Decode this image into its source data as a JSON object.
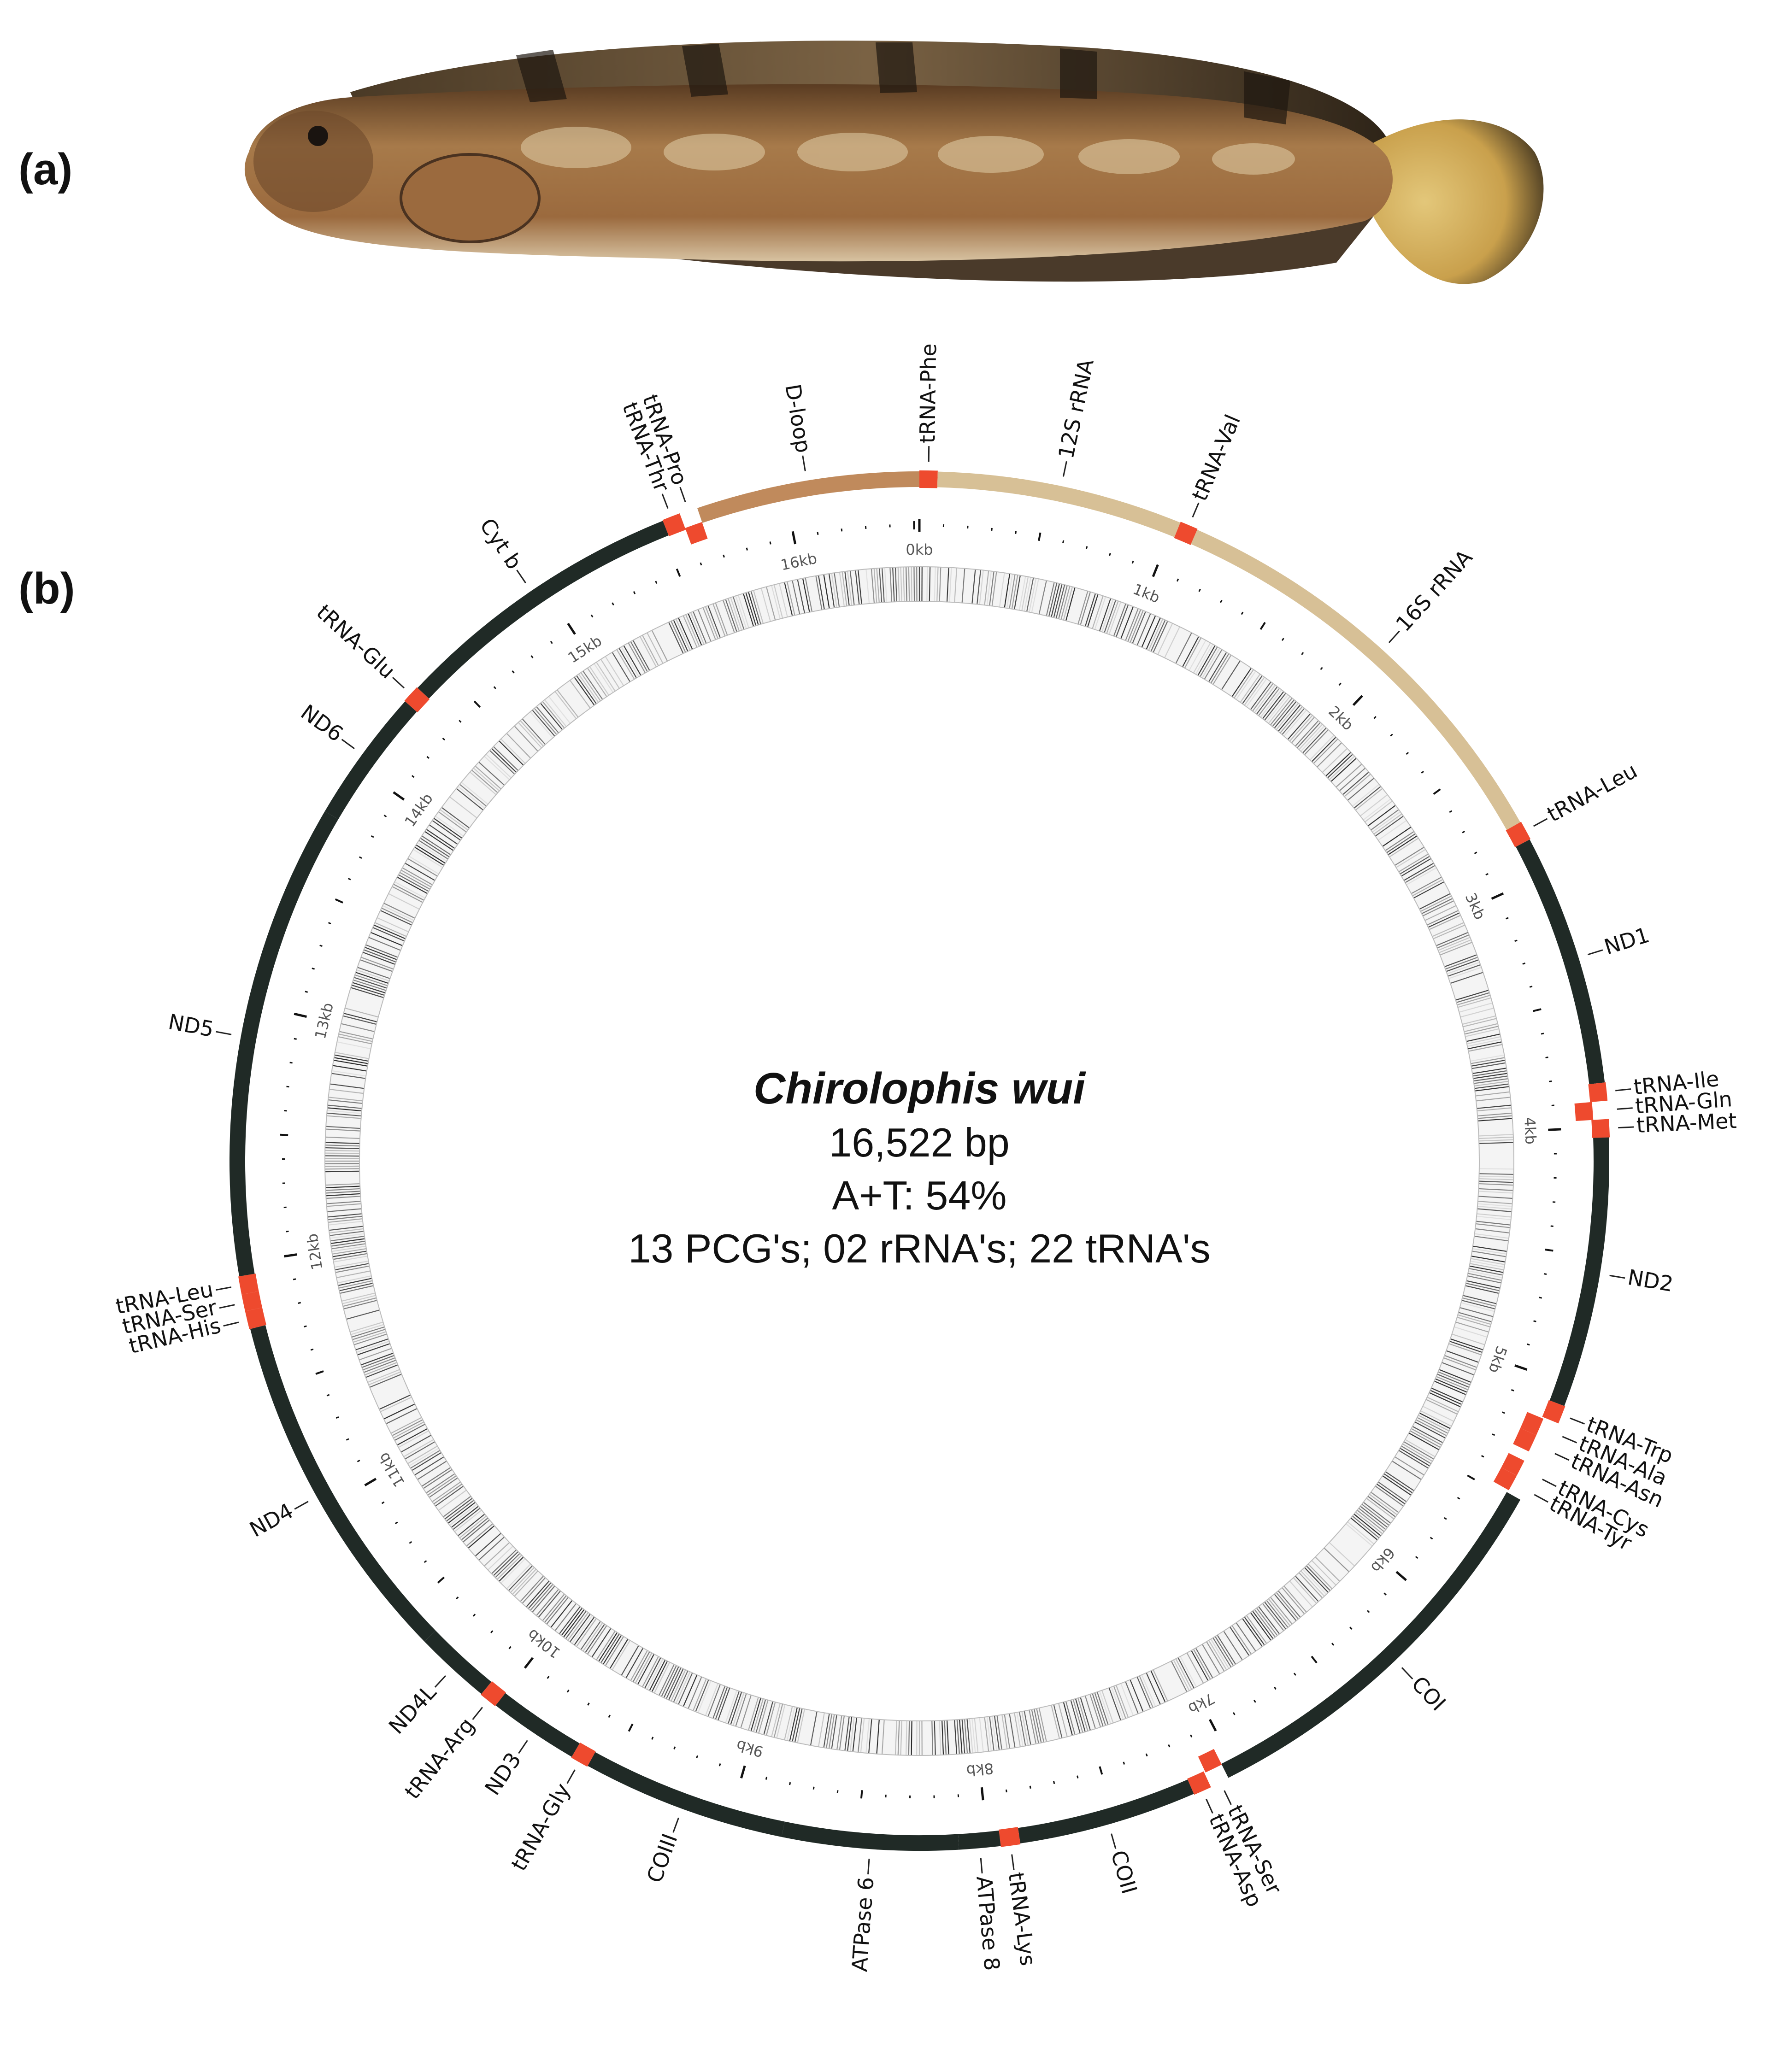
{
  "panel_labels": {
    "a": "(a)",
    "b": "(b)"
  },
  "map": {
    "species": "Chirolophis wui",
    "length_label": "16,522 bp",
    "at_label": "A+T: 54%",
    "counts_label": "13 PCG's; 02 rRNA's; 22 tRNA's",
    "genome_length_bp": 16522,
    "colors": {
      "pcg": "#202a26",
      "rrna": "#d7c096",
      "dloop": "#c08a5c",
      "trna": "#ee4a2e",
      "gc_dark": "#222222"
    },
    "tick_labels": [
      "0kb",
      "1kb",
      "2kb",
      "3kb",
      "4kb",
      "5kb",
      "6kb",
      "7kb",
      "8kb",
      "9kb",
      "10kb",
      "11kb",
      "12kb",
      "13kb",
      "14kb",
      "15kb",
      "16kb"
    ],
    "features": [
      {
        "name": "tRNA-Phe",
        "type": "trna",
        "start": 0,
        "end": 70
      },
      {
        "name": "12S rRNA",
        "type": "rrna",
        "start": 70,
        "end": 1020
      },
      {
        "name": "tRNA-Val",
        "type": "trna",
        "start": 1020,
        "end": 1090
      },
      {
        "name": "16S rRNA",
        "type": "rrna",
        "start": 1090,
        "end": 2780
      },
      {
        "name": "tRNA-Leu",
        "type": "trna",
        "start": 2780,
        "end": 2855
      },
      {
        "name": "ND1",
        "type": "pcg",
        "start": 2855,
        "end": 3830
      },
      {
        "name": "tRNA-Ile",
        "type": "trna",
        "start": 3830,
        "end": 3900
      },
      {
        "name": "tRNA-Gln",
        "type": "trna",
        "start": 3900,
        "end": 3970,
        "inner": true
      },
      {
        "name": "tRNA-Met",
        "type": "trna",
        "start": 3970,
        "end": 4040
      },
      {
        "name": "ND2",
        "type": "pcg",
        "start": 4040,
        "end": 5085
      },
      {
        "name": "tRNA-Trp",
        "type": "trna",
        "start": 5085,
        "end": 5155
      },
      {
        "name": "tRNA-Ala",
        "type": "trna",
        "start": 5160,
        "end": 5230,
        "inner": true
      },
      {
        "name": "tRNA-Asn",
        "type": "trna",
        "start": 5230,
        "end": 5300,
        "inner": true
      },
      {
        "name": "tRNA-Cys",
        "type": "trna",
        "start": 5340,
        "end": 5405,
        "inner": true
      },
      {
        "name": "tRNA-Tyr",
        "type": "trna",
        "start": 5405,
        "end": 5470,
        "inner": true
      },
      {
        "name": "COI",
        "type": "pcg",
        "start": 5480,
        "end": 7040
      },
      {
        "name": "tRNA-Ser",
        "type": "trna",
        "start": 7040,
        "end": 7110,
        "inner": true
      },
      {
        "name": "tRNA-Asp",
        "type": "trna",
        "start": 7115,
        "end": 7185
      },
      {
        "name": "COII",
        "type": "pcg",
        "start": 7185,
        "end": 7875
      },
      {
        "name": "tRNA-Lys",
        "type": "trna",
        "start": 7875,
        "end": 7950
      },
      {
        "name": "ATPase 8",
        "type": "pcg",
        "start": 7950,
        "end": 8110
      },
      {
        "name": "ATPase 6",
        "type": "pcg",
        "start": 8110,
        "end": 8790
      },
      {
        "name": "COIII",
        "type": "pcg",
        "start": 8790,
        "end": 9580
      },
      {
        "name": "tRNA-Gly",
        "type": "trna",
        "start": 9580,
        "end": 9650
      },
      {
        "name": "ND3",
        "type": "pcg",
        "start": 9650,
        "end": 10000
      },
      {
        "name": "tRNA-Arg",
        "type": "trna",
        "start": 10000,
        "end": 10070
      },
      {
        "name": "ND4L",
        "type": "pcg",
        "start": 10070,
        "end": 10365
      },
      {
        "name": "ND4",
        "type": "pcg",
        "start": 10365,
        "end": 11745
      },
      {
        "name": "tRNA-His",
        "type": "trna",
        "start": 11745,
        "end": 11815
      },
      {
        "name": "tRNA-Ser",
        "type": "trna",
        "start": 11815,
        "end": 11880
      },
      {
        "name": "tRNA-Leu",
        "type": "trna",
        "start": 11880,
        "end": 11950
      },
      {
        "name": "ND5",
        "type": "pcg",
        "start": 11950,
        "end": 13790
      },
      {
        "name": "ND6",
        "type": "pcg",
        "start": 13790,
        "end": 14310
      },
      {
        "name": "tRNA-Glu",
        "type": "trna",
        "start": 14310,
        "end": 14380
      },
      {
        "name": "Cyt b",
        "type": "pcg",
        "start": 14380,
        "end": 15520
      },
      {
        "name": "tRNA-Thr",
        "type": "trna",
        "start": 15520,
        "end": 15590
      },
      {
        "name": "tRNA-Pro",
        "type": "trna",
        "start": 15590,
        "end": 15660,
        "inner": true
      },
      {
        "name": "D-loop",
        "type": "dloop",
        "start": 15660,
        "end": 16522
      }
    ]
  }
}
